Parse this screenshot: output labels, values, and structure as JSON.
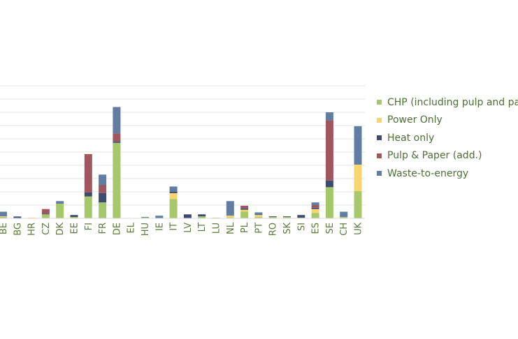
{
  "chart_data": {
    "type": "bar",
    "stacked": true,
    "categories": [
      "BE",
      "BG",
      "HR",
      "CZ",
      "DK",
      "EE",
      "FI",
      "FR",
      "DE",
      "EL",
      "HU",
      "IE",
      "IT",
      "LV",
      "LT",
      "LU",
      "NL",
      "PL",
      "PT",
      "RO",
      "SK",
      "SI",
      "ES",
      "SE",
      "CH",
      "UK"
    ],
    "series": [
      {
        "name": "CHP (including pulp and paper)",
        "color": "#a5c86a",
        "values": [
          1,
          0,
          0,
          3,
          11,
          1,
          16.5,
          12,
          57,
          0,
          0.5,
          0,
          14.5,
          0,
          1.5,
          0.5,
          0.5,
          5,
          1,
          1,
          1,
          0.5,
          4,
          23.5,
          1,
          20.5
        ]
      },
      {
        "name": "Power Only",
        "color": "#f9d56e",
        "values": [
          0.5,
          0,
          0.5,
          0,
          0,
          0,
          0,
          0,
          0,
          0,
          0,
          0,
          4.5,
          0,
          0,
          0,
          1.5,
          1.5,
          1.5,
          0,
          0,
          0,
          3,
          0,
          0,
          20
        ]
      },
      {
        "name": "Heat only",
        "color": "#3c4b6e",
        "values": [
          0,
          1,
          0,
          0.5,
          0,
          1.5,
          3,
          7,
          1,
          0,
          0,
          0,
          1,
          3,
          1.5,
          0,
          0,
          1,
          0.5,
          0.5,
          0.5,
          2,
          1,
          5,
          0,
          0
        ]
      },
      {
        "name": "Pulp & Paper (add.)",
        "color": "#a0565e",
        "values": [
          0,
          0,
          0,
          3.5,
          0,
          0,
          29,
          6,
          6,
          0,
          0,
          0,
          0,
          0,
          0,
          0,
          0,
          2,
          0,
          0,
          0,
          0,
          2,
          45.5,
          0,
          0
        ]
      },
      {
        "name": "Waste-to-energy",
        "color": "#617da2",
        "values": [
          3.5,
          0.5,
          0,
          0,
          2,
          0,
          0,
          8,
          20,
          0,
          0.5,
          2,
          4,
          0,
          0,
          0,
          11,
          0,
          1.5,
          0,
          0,
          0,
          2,
          6,
          4,
          29
        ]
      }
    ],
    "ylim": [
      0,
      100
    ],
    "grid": true,
    "legend_position": "right"
  }
}
